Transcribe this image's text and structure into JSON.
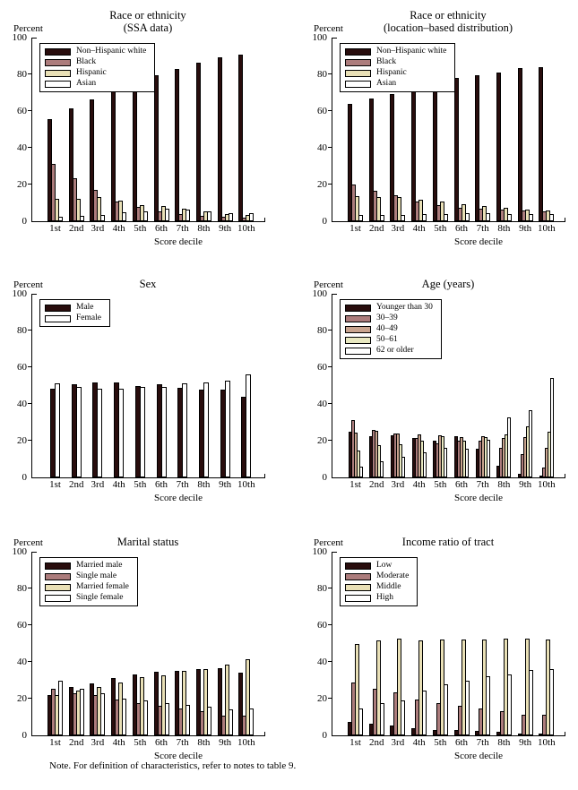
{
  "page": {
    "note": "Note. For definition of characteristics, refer to notes to table 9."
  },
  "axis": {
    "ylabel": "Percent",
    "xlabel": "Score decile",
    "yticks": [
      0,
      20,
      40,
      60,
      80,
      100
    ]
  },
  "palette": {
    "dark": "#290d0d",
    "rose": "#ac7c7c",
    "tan": "#c9a48f",
    "cream": "#e9e0b6",
    "pale": "#e9e9c1",
    "white": "#ffffff"
  },
  "chart_data": [
    {
      "type": "bar",
      "title_lines": [
        "Race or ethnicity",
        "(SSA data)"
      ],
      "ylabel": "Percent",
      "xlabel": "Score decile",
      "ylim": [
        0,
        100
      ],
      "grid": false,
      "legend_position": "upper-left",
      "categories": [
        "1st",
        "2nd",
        "3rd",
        "4th",
        "5th",
        "6th",
        "7th",
        "8th",
        "9th",
        "10th"
      ],
      "series": [
        {
          "name": "Non–Hispanic white",
          "color": "#290d0d",
          "values": [
            55.5,
            61.5,
            66.5,
            73.5,
            77.5,
            79.5,
            83,
            86.5,
            89.5,
            90.5
          ]
        },
        {
          "name": "Black",
          "color": "#ac7c7c",
          "values": [
            31,
            23.5,
            17,
            10.5,
            8,
            5.5,
            4,
            3,
            2.5,
            2
          ]
        },
        {
          "name": "Hispanic",
          "color": "#e9e0b6",
          "values": [
            12,
            12,
            13,
            11,
            9,
            8.5,
            7,
            5.5,
            4,
            3.5
          ]
        },
        {
          "name": "Asian",
          "color": "#ffffff",
          "values": [
            2.5,
            3,
            3.5,
            5,
            5.5,
            7,
            6.5,
            5.5,
            4.5,
            4.5
          ]
        }
      ]
    },
    {
      "type": "bar",
      "title_lines": [
        "Race or ethnicity",
        "(location–based distribution)"
      ],
      "ylabel": "Percent",
      "xlabel": "Score decile",
      "ylim": [
        0,
        100
      ],
      "grid": false,
      "legend_position": "upper-left",
      "categories": [
        "1st",
        "2nd",
        "3rd",
        "4th",
        "5th",
        "6th",
        "7th",
        "8th",
        "9th",
        "10th"
      ],
      "series": [
        {
          "name": "Non–Hispanic white",
          "color": "#290d0d",
          "values": [
            64,
            67,
            69.5,
            73.5,
            76,
            78,
            79.5,
            81,
            83.5,
            84
          ]
        },
        {
          "name": "Black",
          "color": "#ac7c7c",
          "values": [
            20,
            16.5,
            14,
            10.5,
            9,
            7.5,
            7,
            6.5,
            6,
            5.5
          ]
        },
        {
          "name": "Hispanic",
          "color": "#e9e0b6",
          "values": [
            13.5,
            13,
            13,
            11.5,
            10.5,
            9.5,
            8.5,
            7.5,
            6.5,
            6
          ]
        },
        {
          "name": "Asian",
          "color": "#ffffff",
          "values": [
            3.5,
            3.5,
            3.5,
            4,
            4,
            4.5,
            4.5,
            4,
            4,
            4
          ]
        }
      ]
    },
    {
      "type": "bar",
      "title_lines": [
        "Sex"
      ],
      "ylabel": "Percent",
      "xlabel": "Score decile",
      "ylim": [
        0,
        100
      ],
      "grid": false,
      "legend_position": "upper-left",
      "categories": [
        "1st",
        "2nd",
        "3rd",
        "4th",
        "5th",
        "6th",
        "7th",
        "8th",
        "9th",
        "10th"
      ],
      "series": [
        {
          "name": "Male",
          "color": "#290d0d",
          "values": [
            48.5,
            50.5,
            51.5,
            51.5,
            50,
            50.5,
            49,
            48,
            48,
            44
          ]
        },
        {
          "name": "Female",
          "color": "#ffffff",
          "values": [
            51,
            49.5,
            48.5,
            48.5,
            49.5,
            49.5,
            51,
            51.5,
            52.5,
            56
          ]
        }
      ]
    },
    {
      "type": "bar",
      "title_lines": [
        "Age (years)"
      ],
      "ylabel": "Percent",
      "xlabel": "Score decile",
      "ylim": [
        0,
        100
      ],
      "grid": false,
      "legend_position": "upper-left",
      "categories": [
        "1st",
        "2nd",
        "3rd",
        "4th",
        "5th",
        "6th",
        "7th",
        "8th",
        "9th",
        "10th"
      ],
      "series": [
        {
          "name": "Younger than 30",
          "color": "#290d0d",
          "values": [
            25,
            22.5,
            23,
            21.5,
            20,
            22.5,
            15.5,
            6.5,
            2,
            0.5
          ]
        },
        {
          "name": "30–39",
          "color": "#ac7c7c",
          "values": [
            31,
            26,
            24,
            21.5,
            18.5,
            20,
            20,
            16,
            12.5,
            5.5
          ]
        },
        {
          "name": "40–49",
          "color": "#c9a48f",
          "values": [
            24.5,
            25.5,
            24,
            23.5,
            23,
            22,
            22.5,
            21.5,
            22,
            16
          ]
        },
        {
          "name": "50–61",
          "color": "#e9e9c1",
          "values": [
            14.5,
            17.5,
            18,
            20,
            22.5,
            20,
            22,
            23.5,
            28,
            25
          ]
        },
        {
          "name": "62 or older",
          "color": "#ffffff",
          "values": [
            6,
            9,
            11,
            13.5,
            16,
            15.5,
            20.5,
            32.5,
            36.5,
            54
          ]
        }
      ]
    },
    {
      "type": "bar",
      "title_lines": [
        "Marital status"
      ],
      "ylabel": "Percent",
      "xlabel": "Score decile",
      "ylim": [
        0,
        100
      ],
      "grid": false,
      "legend_position": "upper-left",
      "categories": [
        "1st",
        "2nd",
        "3rd",
        "4th",
        "5th",
        "6th",
        "7th",
        "8th",
        "9th",
        "10th"
      ],
      "series": [
        {
          "name": "Married male",
          "color": "#290d0d",
          "values": [
            22,
            26.5,
            28.5,
            31,
            33,
            34.5,
            35,
            36,
            36.5,
            34
          ]
        },
        {
          "name": "Single male",
          "color": "#ac7c7c",
          "values": [
            25.5,
            23,
            22,
            19.5,
            17.5,
            16,
            14.5,
            13,
            10.5,
            10.5
          ]
        },
        {
          "name": "Married female",
          "color": "#e9e0b6",
          "values": [
            22,
            24.5,
            26.5,
            29,
            31.5,
            32.5,
            35,
            36,
            38.5,
            41.5
          ]
        },
        {
          "name": "Single female",
          "color": "#ffffff",
          "values": [
            30,
            25.5,
            23,
            20,
            19,
            17.5,
            16.5,
            15.5,
            14,
            14.5
          ]
        }
      ]
    },
    {
      "type": "bar",
      "title_lines": [
        "Income ratio of tract"
      ],
      "ylabel": "Percent",
      "xlabel": "Score decile",
      "ylim": [
        0,
        100
      ],
      "grid": false,
      "legend_position": "upper-left",
      "categories": [
        "1st",
        "2nd",
        "3rd",
        "4th",
        "5th",
        "6th",
        "7th",
        "8th",
        "9th",
        "10th"
      ],
      "series": [
        {
          "name": "Low",
          "color": "#290d0d",
          "values": [
            7.5,
            6.5,
            5.5,
            4,
            3,
            3,
            2.5,
            2,
            1,
            1
          ]
        },
        {
          "name": "Moderate",
          "color": "#ac7c7c",
          "values": [
            29,
            25.5,
            23.5,
            19.5,
            17.5,
            16,
            14.5,
            13,
            11,
            11
          ]
        },
        {
          "name": "Middle",
          "color": "#e9e0b6",
          "values": [
            50,
            51.5,
            52.5,
            51.5,
            52,
            52,
            52,
            52.5,
            52.5,
            52
          ]
        },
        {
          "name": "High",
          "color": "#ffffff",
          "values": [
            14.5,
            17.5,
            19,
            24.5,
            28,
            30,
            32,
            33,
            35.5,
            36
          ]
        }
      ]
    }
  ]
}
